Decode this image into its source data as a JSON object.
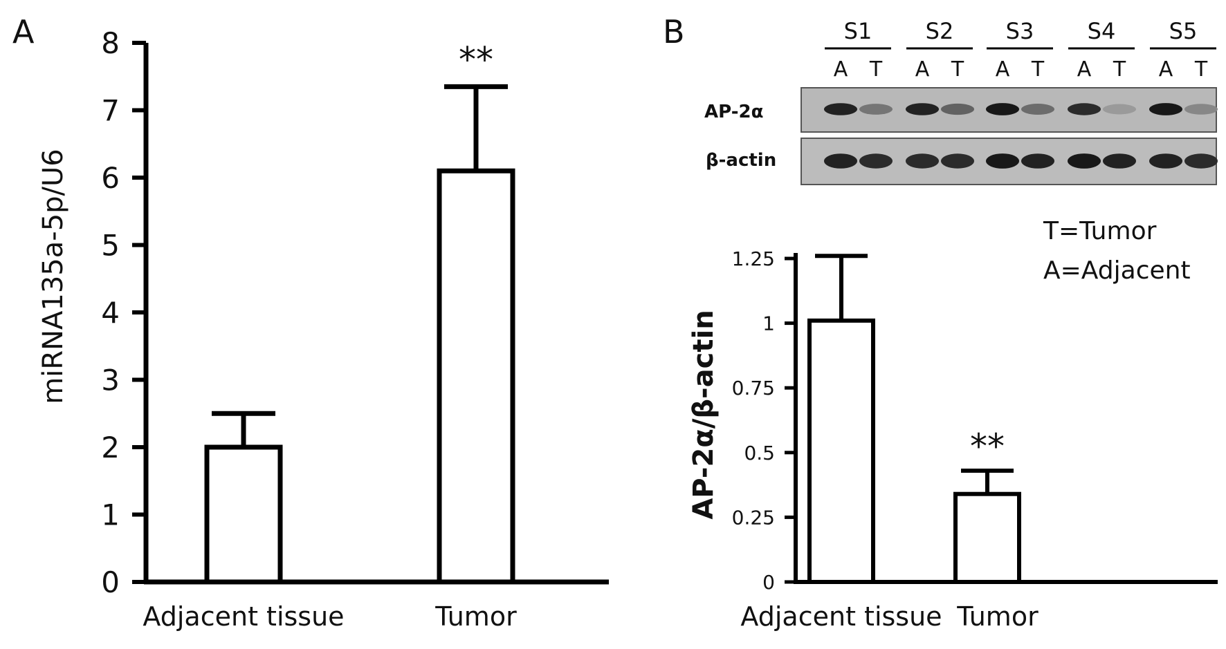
{
  "chart_data": [
    {
      "panel": "A",
      "type": "bar",
      "categories": [
        "Adjacent tissue",
        "Tumor"
      ],
      "values": [
        2.0,
        6.1
      ],
      "error": [
        0.5,
        1.25
      ],
      "significance": [
        "",
        "**"
      ],
      "ylabel": "miRNA135a-5p/U6",
      "xlabel": "",
      "ylim": [
        0,
        8
      ],
      "yticks": [
        "0",
        "1",
        "2",
        "3",
        "4",
        "5",
        "6",
        "7",
        "8"
      ],
      "bar_fill": "#ffffff",
      "bar_stroke": "#000000",
      "grid": false
    },
    {
      "panel": "B",
      "type": "bar",
      "categories": [
        "Adjacent tissue",
        "Tumor"
      ],
      "values": [
        1.01,
        0.34
      ],
      "error": [
        0.25,
        0.09
      ],
      "significance": [
        "",
        "**"
      ],
      "ylabel": "AP-2α/β-actin",
      "xlabel": "",
      "ylim": [
        0,
        1.25
      ],
      "yticks": [
        "0",
        "0.25",
        "0.5",
        "0.75",
        "1",
        "1.25"
      ],
      "bar_fill": "#ffffff",
      "bar_stroke": "#000000",
      "grid": false,
      "legend": [
        "T=Tumor",
        "A=Adjacent"
      ],
      "blot": {
        "samples": [
          "S1",
          "S2",
          "S3",
          "S4",
          "S5"
        ],
        "lanes": [
          "A",
          "T"
        ],
        "rows": [
          "AP-2α",
          "β-actin"
        ],
        "band_intensity": {
          "AP-2α": [
            0.9,
            0.45,
            0.9,
            0.55,
            0.95,
            0.5,
            0.85,
            0.25,
            0.95,
            0.35
          ],
          "β-actin": [
            0.9,
            0.85,
            0.85,
            0.85,
            0.95,
            0.9,
            0.95,
            0.9,
            0.9,
            0.85
          ]
        }
      }
    }
  ]
}
